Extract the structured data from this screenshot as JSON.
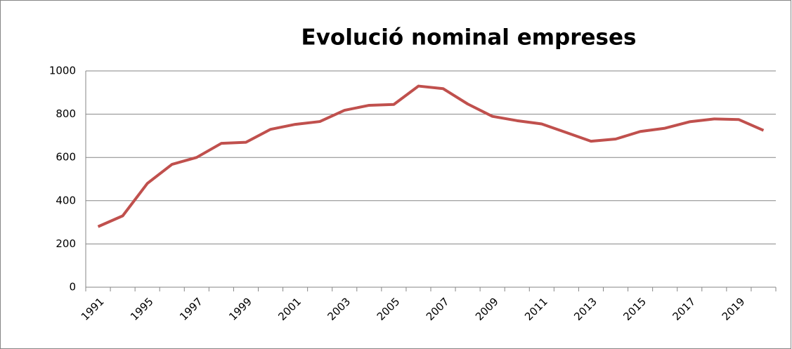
{
  "chart_data": {
    "type": "line",
    "title": "Evolució nominal empreses",
    "categories": [
      "1991",
      null,
      "1995",
      null,
      "1997",
      null,
      "1999",
      null,
      "2001",
      null,
      "2003",
      null,
      "2005",
      null,
      "2007",
      null,
      "2009",
      null,
      "2011",
      null,
      "2013",
      null,
      "2015",
      null,
      "2017",
      null,
      "2019",
      null
    ],
    "series": [
      {
        "name": "empreses",
        "color": "#c0504d",
        "values": [
          280,
          330,
          480,
          568,
          600,
          665,
          670,
          730,
          753,
          766,
          818,
          841,
          845,
          930,
          918,
          847,
          790,
          770,
          755,
          715,
          675,
          685,
          720,
          735,
          765,
          778,
          775,
          725
        ]
      }
    ],
    "ylim": [
      0,
      1000
    ],
    "yticks": [
      0,
      200,
      400,
      600,
      800,
      1000
    ],
    "grid": true
  }
}
